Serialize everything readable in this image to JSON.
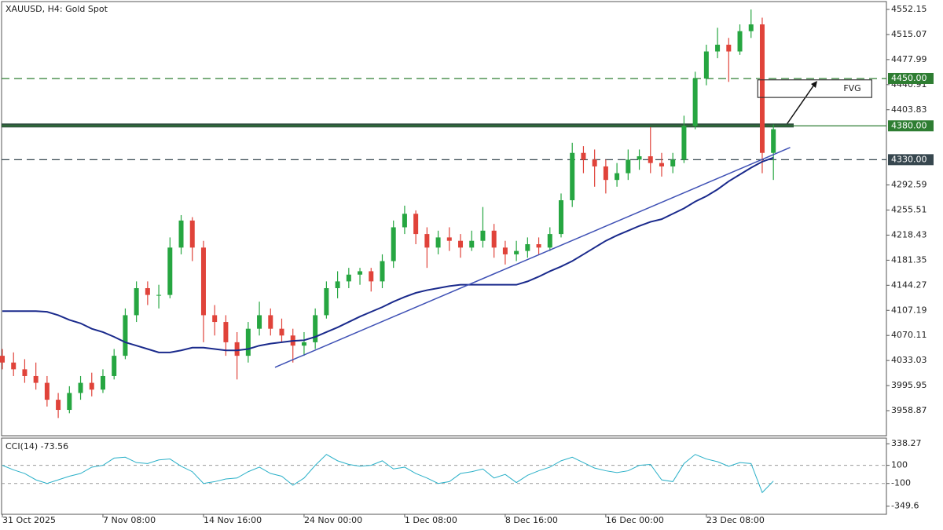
{
  "chart_data": {
    "type": "candlestick",
    "title": "XAUUSD, H4:  Gold Spot",
    "up_color": "#26a641",
    "down_color": "#e0433a",
    "candles": [
      [
        4040,
        4050,
        4020,
        4030
      ],
      [
        4030,
        4045,
        4010,
        4020
      ],
      [
        4020,
        4035,
        4000,
        4010
      ],
      [
        4010,
        4030,
        3990,
        4000
      ],
      [
        4000,
        4010,
        3965,
        3975
      ],
      [
        3975,
        3985,
        3948,
        3960
      ],
      [
        3960,
        3995,
        3955,
        3985
      ],
      [
        3985,
        4010,
        3975,
        4000
      ],
      [
        4000,
        4015,
        3980,
        3990
      ],
      [
        3990,
        4020,
        3985,
        4010
      ],
      [
        4010,
        4050,
        4005,
        4040
      ],
      [
        4040,
        4110,
        4035,
        4100
      ],
      [
        4100,
        4150,
        4090,
        4140
      ],
      [
        4140,
        4150,
        4115,
        4130
      ],
      [
        4130,
        4145,
        4110,
        4130
      ],
      [
        4130,
        4215,
        4125,
        4200
      ],
      [
        4200,
        4248,
        4190,
        4240
      ],
      [
        4240,
        4245,
        4180,
        4200
      ],
      [
        4200,
        4210,
        4060,
        4100
      ],
      [
        4100,
        4115,
        4070,
        4090
      ],
      [
        4090,
        4100,
        4040,
        4060
      ],
      [
        4060,
        4075,
        4005,
        4040
      ],
      [
        4040,
        4090,
        4030,
        4080
      ],
      [
        4080,
        4120,
        4070,
        4100
      ],
      [
        4100,
        4110,
        4070,
        4080
      ],
      [
        4080,
        4095,
        4060,
        4070
      ],
      [
        4070,
        4080,
        4030,
        4055
      ],
      [
        4055,
        4075,
        4040,
        4060
      ],
      [
        4060,
        4110,
        4050,
        4100
      ],
      [
        4100,
        4150,
        4095,
        4140
      ],
      [
        4140,
        4165,
        4125,
        4150
      ],
      [
        4150,
        4170,
        4140,
        4160
      ],
      [
        4160,
        4170,
        4145,
        4165
      ],
      [
        4165,
        4170,
        4135,
        4150
      ],
      [
        4150,
        4190,
        4140,
        4180
      ],
      [
        4180,
        4240,
        4170,
        4230
      ],
      [
        4230,
        4262,
        4220,
        4250
      ],
      [
        4250,
        4255,
        4205,
        4220
      ],
      [
        4220,
        4230,
        4170,
        4200
      ],
      [
        4200,
        4225,
        4190,
        4215
      ],
      [
        4215,
        4230,
        4195,
        4210
      ],
      [
        4210,
        4220,
        4185,
        4200
      ],
      [
        4200,
        4225,
        4195,
        4210
      ],
      [
        4210,
        4260,
        4200,
        4225
      ],
      [
        4225,
        4235,
        4185,
        4200
      ],
      [
        4200,
        4210,
        4175,
        4190
      ],
      [
        4190,
        4210,
        4180,
        4195
      ],
      [
        4195,
        4215,
        4185,
        4205
      ],
      [
        4205,
        4215,
        4190,
        4200
      ],
      [
        4200,
        4230,
        4195,
        4220
      ],
      [
        4220,
        4280,
        4215,
        4270
      ],
      [
        4270,
        4355,
        4260,
        4340
      ],
      [
        4340,
        4350,
        4310,
        4330
      ],
      [
        4330,
        4345,
        4290,
        4320
      ],
      [
        4320,
        4330,
        4280,
        4300
      ],
      [
        4300,
        4325,
        4290,
        4310
      ],
      [
        4310,
        4345,
        4300,
        4330
      ],
      [
        4330,
        4345,
        4315,
        4335
      ],
      [
        4335,
        4378,
        4310,
        4325
      ],
      [
        4325,
        4340,
        4305,
        4320
      ],
      [
        4320,
        4340,
        4310,
        4330
      ],
      [
        4330,
        4395,
        4325,
        4380
      ],
      [
        4380,
        4460,
        4375,
        4450
      ],
      [
        4450,
        4500,
        4440,
        4490
      ],
      [
        4490,
        4525,
        4480,
        4500
      ],
      [
        4500,
        4510,
        4445,
        4490
      ],
      [
        4490,
        4530,
        4485,
        4520
      ],
      [
        4520,
        4552,
        4510,
        4530
      ],
      [
        4530,
        4540,
        4310,
        4340
      ],
      [
        4340,
        4382,
        4300,
        4375
      ]
    ],
    "ma": {
      "color": "#1a2a8c",
      "values": [
        4106,
        4106,
        4106,
        4106,
        4105,
        4100,
        4093,
        4088,
        4080,
        4075,
        4068,
        4060,
        4055,
        4050,
        4045,
        4045,
        4048,
        4052,
        4052,
        4050,
        4048,
        4048,
        4050,
        4055,
        4058,
        4060,
        4062,
        4063,
        4068,
        4075,
        4082,
        4090,
        4098,
        4105,
        4112,
        4120,
        4127,
        4133,
        4137,
        4140,
        4143,
        4145,
        4145,
        4145,
        4145,
        4145,
        4145,
        4150,
        4157,
        4165,
        4172,
        4180,
        4190,
        4200,
        4210,
        4218,
        4225,
        4232,
        4238,
        4242,
        4250,
        4258,
        4268,
        4276,
        4286,
        4298,
        4308,
        4318,
        4327,
        4333
      ]
    },
    "trendline": {
      "color": "#3f51b5",
      "x": [
        24.4,
        70.5
      ],
      "y": [
        4023,
        4348
      ]
    },
    "fvg": {
      "label": "FVG",
      "x": [
        67.6,
        77.8
      ],
      "top": 4448,
      "bottom": 4422
    },
    "levels": [
      {
        "value": 4450,
        "label": "4450.00",
        "color": "#2e7d32",
        "style": "dashed"
      },
      {
        "value": 4380,
        "label": "4380.00",
        "color": "#2e7d32",
        "style": "solid"
      },
      {
        "value": 4330,
        "label": "4330.00",
        "color": "#37474f",
        "style": "dashed"
      }
    ],
    "ylim": [
      3921.72,
      4563.76
    ],
    "yticks": [
      4552.15,
      4515.07,
      4477.99,
      4440.91,
      4403.83,
      4292.59,
      4255.51,
      4218.43,
      4181.35,
      4144.27,
      4107.19,
      4070.11,
      4033.03,
      3995.95,
      3958.87
    ],
    "xticks": [
      {
        "value": 0,
        "label": "31 Oct 2025"
      },
      {
        "value": 9,
        "label": "7 Nov 08:00"
      },
      {
        "value": 18,
        "label": "14 Nov 16:00"
      },
      {
        "value": 27,
        "label": "24 Nov 00:00"
      },
      {
        "value": 36,
        "label": "1 Dec 08:00"
      },
      {
        "value": 45,
        "label": "8 Dec 16:00"
      },
      {
        "value": 54,
        "label": "16 Dec 00:00"
      },
      {
        "value": 63,
        "label": "23 Dec 08:00"
      }
    ],
    "cci": {
      "title": "CCI(14) -73.56",
      "color": "#2ab0c8",
      "values": [
        100,
        50,
        10,
        -60,
        -100,
        -60,
        -20,
        10,
        80,
        100,
        180,
        190,
        130,
        120,
        160,
        170,
        90,
        30,
        -100,
        -80,
        -50,
        -40,
        30,
        80,
        10,
        -20,
        -120,
        -40,
        100,
        220,
        150,
        110,
        90,
        100,
        150,
        60,
        80,
        10,
        -40,
        -100,
        -80,
        10,
        30,
        60,
        -40,
        0,
        -90,
        -10,
        40,
        80,
        150,
        190,
        130,
        70,
        40,
        20,
        40,
        100,
        110,
        -60,
        -80,
        120,
        220,
        170,
        140,
        90,
        130,
        120,
        -200,
        -73.56
      ],
      "ylim": [
        -440,
        400
      ],
      "yticks": [
        338.27,
        100,
        -100,
        -349.6
      ],
      "levels": [
        100,
        -100
      ]
    }
  }
}
